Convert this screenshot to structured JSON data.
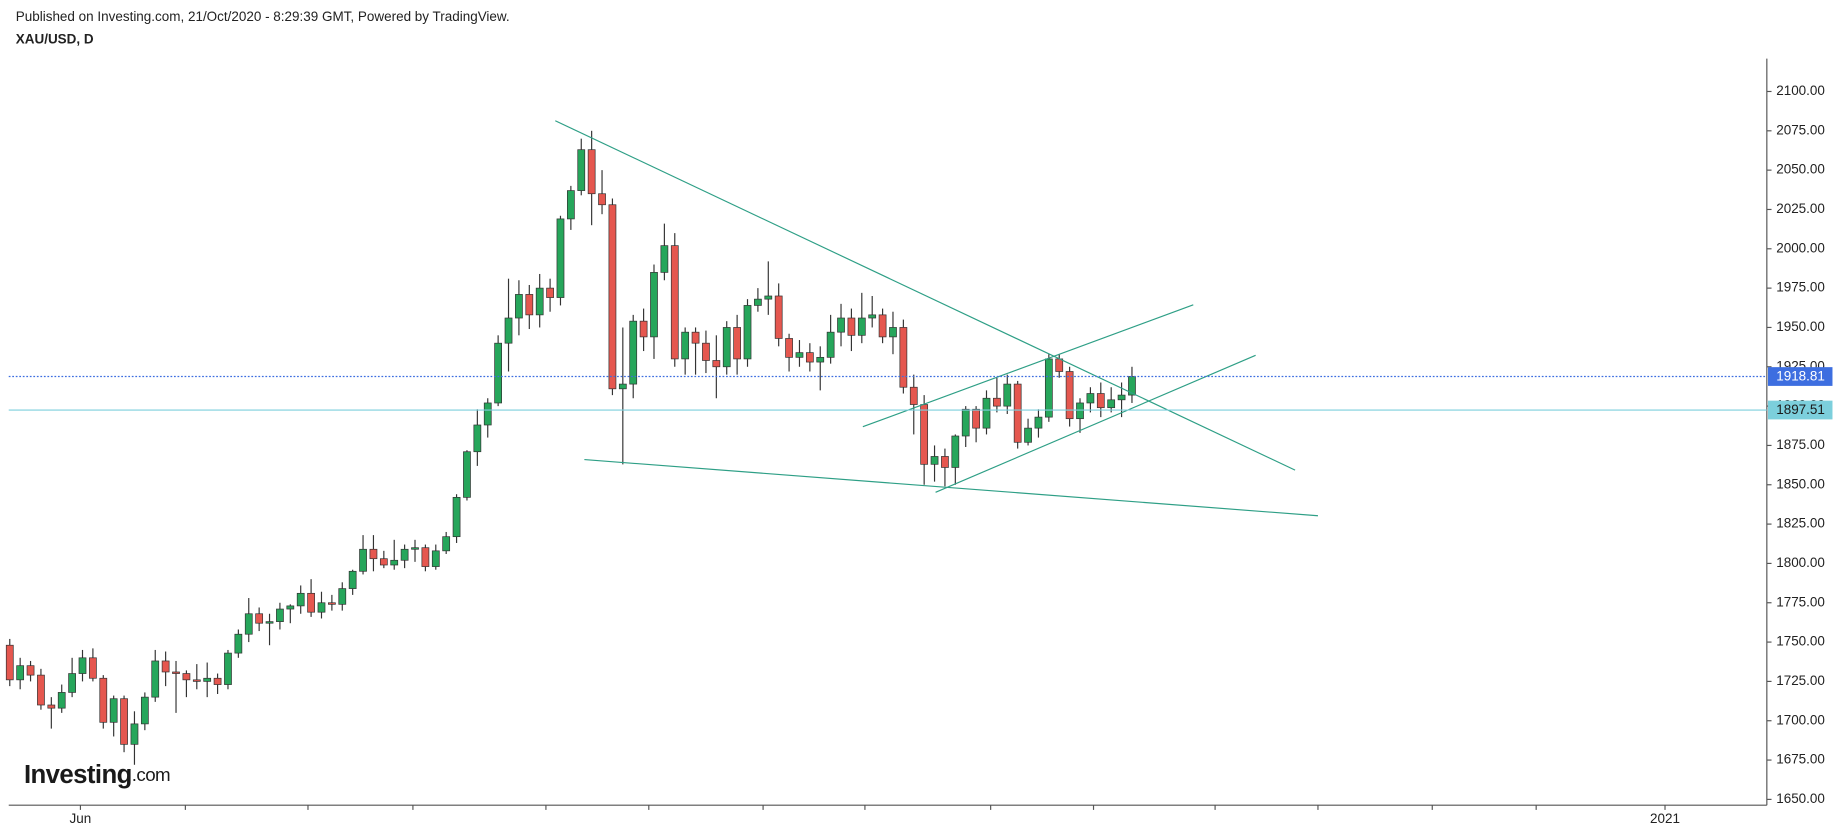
{
  "chart_data": {
    "type": "candlestick",
    "publisher": "Published on Investing.com, 21/Oct/2020 - 8:29:39 GMT, Powered by TradingView.",
    "title": "XAU/USD, D",
    "logo": [
      "Investing",
      ".com"
    ],
    "up_color": "#26a65b",
    "down_color": "#e5574f",
    "ohlc": [
      [
        1748,
        1752,
        1722,
        1726
      ],
      [
        1726,
        1740,
        1720,
        1735
      ],
      [
        1735,
        1738,
        1725,
        1729
      ],
      [
        1729,
        1733,
        1707,
        1710
      ],
      [
        1710,
        1715,
        1695,
        1708
      ],
      [
        1708,
        1723,
        1705,
        1718
      ],
      [
        1718,
        1740,
        1715,
        1730
      ],
      [
        1730,
        1745,
        1725,
        1740
      ],
      [
        1740,
        1746,
        1725,
        1727
      ],
      [
        1727,
        1729,
        1695,
        1699
      ],
      [
        1699,
        1716,
        1690,
        1714
      ],
      [
        1714,
        1716,
        1680,
        1685
      ],
      [
        1685,
        1706,
        1672,
        1698
      ],
      [
        1698,
        1718,
        1694,
        1715
      ],
      [
        1715,
        1745,
        1712,
        1738
      ],
      [
        1738,
        1744,
        1722,
        1731
      ],
      [
        1731,
        1738,
        1705,
        1730
      ],
      [
        1730,
        1732,
        1715,
        1726
      ],
      [
        1726,
        1736,
        1720,
        1725
      ],
      [
        1725,
        1737,
        1715,
        1727
      ],
      [
        1727,
        1730,
        1717,
        1723
      ],
      [
        1723,
        1745,
        1720,
        1743
      ],
      [
        1743,
        1758,
        1740,
        1755
      ],
      [
        1755,
        1778,
        1750,
        1768
      ],
      [
        1768,
        1772,
        1757,
        1762
      ],
      [
        1762,
        1768,
        1748,
        1763
      ],
      [
        1763,
        1775,
        1758,
        1771
      ],
      [
        1771,
        1774,
        1762,
        1773
      ],
      [
        1773,
        1786,
        1768,
        1781
      ],
      [
        1781,
        1790,
        1766,
        1769
      ],
      [
        1769,
        1782,
        1765,
        1775
      ],
      [
        1775,
        1780,
        1770,
        1774
      ],
      [
        1774,
        1788,
        1770,
        1784
      ],
      [
        1784,
        1796,
        1780,
        1795
      ],
      [
        1795,
        1818,
        1793,
        1809
      ],
      [
        1809,
        1818,
        1795,
        1803
      ],
      [
        1803,
        1808,
        1797,
        1799
      ],
      [
        1799,
        1815,
        1796,
        1802
      ],
      [
        1802,
        1812,
        1797,
        1809
      ],
      [
        1809,
        1815,
        1801,
        1810
      ],
      [
        1810,
        1812,
        1795,
        1798
      ],
      [
        1798,
        1812,
        1796,
        1808
      ],
      [
        1808,
        1820,
        1806,
        1817
      ],
      [
        1817,
        1844,
        1813,
        1842
      ],
      [
        1842,
        1872,
        1840,
        1871
      ],
      [
        1871,
        1898,
        1862,
        1888
      ],
      [
        1888,
        1905,
        1880,
        1902
      ],
      [
        1902,
        1945,
        1900,
        1940
      ],
      [
        1940,
        1981,
        1922,
        1956
      ],
      [
        1956,
        1980,
        1945,
        1971
      ],
      [
        1971,
        1977,
        1949,
        1958
      ],
      [
        1958,
        1984,
        1950,
        1975
      ],
      [
        1975,
        1981,
        1960,
        1969
      ],
      [
        1969,
        2021,
        1964,
        2019
      ],
      [
        2019,
        2040,
        2012,
        2037
      ],
      [
        2037,
        2070,
        2034,
        2063
      ],
      [
        2063,
        2075,
        2015,
        2035
      ],
      [
        2035,
        2050,
        2022,
        2028
      ],
      [
        2028,
        2032,
        1907,
        1911
      ],
      [
        1911,
        1950,
        1863,
        1914
      ],
      [
        1914,
        1958,
        1905,
        1954
      ],
      [
        1954,
        1962,
        1935,
        1944
      ],
      [
        1944,
        1990,
        1930,
        1985
      ],
      [
        1985,
        2016,
        1980,
        2002
      ],
      [
        2002,
        2010,
        1925,
        1930
      ],
      [
        1930,
        1950,
        1920,
        1947
      ],
      [
        1947,
        1950,
        1920,
        1940
      ],
      [
        1940,
        1948,
        1921,
        1929
      ],
      [
        1929,
        1945,
        1905,
        1925
      ],
      [
        1925,
        1954,
        1920,
        1950
      ],
      [
        1950,
        1958,
        1920,
        1930
      ],
      [
        1930,
        1968,
        1925,
        1964
      ],
      [
        1964,
        1975,
        1960,
        1968
      ],
      [
        1968,
        1992,
        1958,
        1970
      ],
      [
        1970,
        1978,
        1938,
        1943
      ],
      [
        1943,
        1946,
        1922,
        1931
      ],
      [
        1931,
        1942,
        1925,
        1934
      ],
      [
        1934,
        1940,
        1922,
        1928
      ],
      [
        1928,
        1938,
        1910,
        1931
      ],
      [
        1931,
        1958,
        1927,
        1947
      ],
      [
        1947,
        1965,
        1938,
        1956
      ],
      [
        1956,
        1962,
        1935,
        1945
      ],
      [
        1945,
        1972,
        1940,
        1956
      ],
      [
        1956,
        1970,
        1950,
        1958
      ],
      [
        1958,
        1962,
        1940,
        1944
      ],
      [
        1944,
        1960,
        1933,
        1950
      ],
      [
        1950,
        1955,
        1908,
        1912
      ],
      [
        1912,
        1920,
        1882,
        1901
      ],
      [
        1901,
        1907,
        1850,
        1863
      ],
      [
        1863,
        1875,
        1852,
        1868
      ],
      [
        1868,
        1873,
        1849,
        1861
      ],
      [
        1861,
        1882,
        1850,
        1881
      ],
      [
        1881,
        1900,
        1874,
        1898
      ],
      [
        1898,
        1900,
        1877,
        1886
      ],
      [
        1886,
        1910,
        1882,
        1905
      ],
      [
        1905,
        1918,
        1896,
        1900
      ],
      [
        1900,
        1920,
        1895,
        1914
      ],
      [
        1914,
        1916,
        1873,
        1877
      ],
      [
        1877,
        1892,
        1875,
        1886
      ],
      [
        1886,
        1898,
        1880,
        1893
      ],
      [
        1893,
        1933,
        1890,
        1930
      ],
      [
        1930,
        1933,
        1918,
        1922
      ],
      [
        1922,
        1925,
        1887,
        1892
      ],
      [
        1892,
        1905,
        1883,
        1902
      ],
      [
        1902,
        1912,
        1896,
        1908
      ],
      [
        1908,
        1915,
        1893,
        1899
      ],
      [
        1899,
        1912,
        1896,
        1904
      ],
      [
        1904,
        1915,
        1893,
        1907
      ],
      [
        1907,
        1925,
        1902,
        1918.81
      ]
    ],
    "xlim": [
      -0.1,
      169.1
    ],
    "xticks": [
      {
        "value": 6.8,
        "label": "Jun"
      },
      {
        "value": 16.9,
        "label": null
      },
      {
        "value": 28.7,
        "label": null
      },
      {
        "value": 38.8,
        "label": null
      },
      {
        "value": 51.6,
        "label": null
      },
      {
        "value": 61.5,
        "label": null
      },
      {
        "value": 72.5,
        "label": null
      },
      {
        "value": 82.3,
        "label": null
      },
      {
        "value": 94.4,
        "label": null
      },
      {
        "value": 104.3,
        "label": null
      },
      {
        "value": 116.0,
        "label": null
      },
      {
        "value": 125.9,
        "label": null
      },
      {
        "value": 136.9,
        "label": null
      },
      {
        "value": 146.9,
        "label": null
      },
      {
        "value": 159.3,
        "label": "2021"
      }
    ],
    "ylim": [
      1646.3,
      2120.9
    ],
    "yticks": [
      {
        "value": 1650,
        "label": "1650.00"
      },
      {
        "value": 1675,
        "label": "1675.00"
      },
      {
        "value": 1700,
        "label": "1700.00"
      },
      {
        "value": 1725,
        "label": "1725.00"
      },
      {
        "value": 1750,
        "label": "1750.00"
      },
      {
        "value": 1775,
        "label": "1775.00"
      },
      {
        "value": 1800,
        "label": "1800.00"
      },
      {
        "value": 1825,
        "label": "1825.00"
      },
      {
        "value": 1850,
        "label": "1850.00"
      },
      {
        "value": 1875,
        "label": "1875.00"
      },
      {
        "value": 1900,
        "label": "1900.00"
      },
      {
        "value": 1925,
        "label": "1925.00"
      },
      {
        "value": 1950,
        "label": "1950.00"
      },
      {
        "value": 1975,
        "label": "1975.00"
      },
      {
        "value": 2000,
        "label": "2000.00"
      },
      {
        "value": 2025,
        "label": "2025.00"
      },
      {
        "value": 2050,
        "label": "2050.00"
      },
      {
        "value": 2075,
        "label": "2075.00"
      },
      {
        "value": 2100,
        "label": "2100.00"
      }
    ],
    "grid": false,
    "price_lines": [
      {
        "value": 1897.51,
        "color": "#7ccfdc",
        "style": "solid"
      },
      {
        "value": 1918.81,
        "color": "#3d6ee0",
        "style": "dotted"
      }
    ],
    "trendlines": {
      "color": "#2e9f86",
      "lines": [
        [
          [
            52.5,
            2081.4
          ],
          [
            123.7,
            1859.3
          ]
        ],
        [
          [
            55.3,
            1866.0
          ],
          [
            125.9,
            1830.3
          ]
        ],
        [
          [
            82.1,
            1886.9
          ],
          [
            113.9,
            1964.4
          ]
        ],
        [
          [
            89.1,
            1845.2
          ],
          [
            119.9,
            1932.3
          ]
        ]
      ]
    }
  }
}
